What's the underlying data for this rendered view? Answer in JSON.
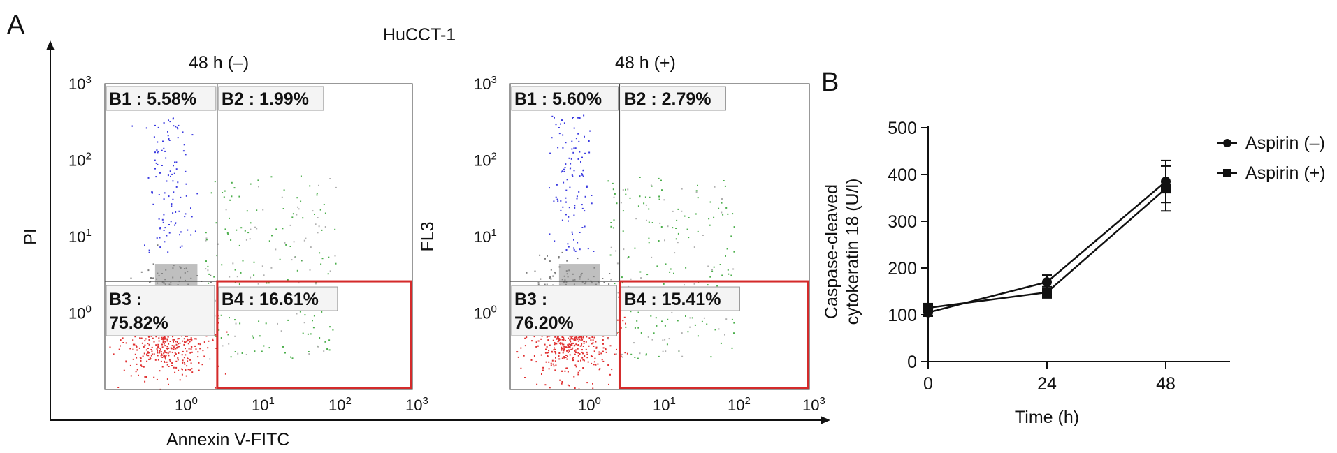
{
  "figure": {
    "panel_a_letter": "A",
    "panel_b_letter": "B",
    "cell_line": "HuCCT-1",
    "x_axis_label": "Annexin V-FITC"
  },
  "flow_plots": [
    {
      "title": "48 h (–)",
      "y_axis_label": "PI",
      "gates": {
        "B1": "B1 : 5.58%",
        "B2": "B2 : 1.99%",
        "B3_name": "B3 :",
        "B3_value": "75.82%",
        "B4": "B4 : 16.61%"
      }
    },
    {
      "title": "48 h (+)",
      "y_axis_label": "FL3",
      "gates": {
        "B1": "B1 : 5.60%",
        "B2": "B2 : 2.79%",
        "B3_name": "B3 :",
        "B3_value": "76.20%",
        "B4": "B4 : 15.41%"
      }
    }
  ],
  "chart_data": [
    {
      "type": "scatter",
      "panel": "A-left",
      "title": "48 h (–)",
      "xlabel": "Annexin V-FITC",
      "ylabel": "PI",
      "x_scale": "log",
      "y_scale": "log",
      "xlim": [
        0.1,
        1000
      ],
      "ylim": [
        0.1,
        1000
      ],
      "x_ticks": [
        "10^0",
        "10^1",
        "10^2",
        "10^3"
      ],
      "y_ticks": [
        "10^0",
        "10^1",
        "10^2",
        "10^3"
      ],
      "quadrant_percent": {
        "B1": 5.58,
        "B2": 1.99,
        "B3": 75.82,
        "B4": 16.61
      }
    },
    {
      "type": "scatter",
      "panel": "A-right",
      "title": "48 h (+)",
      "xlabel": "Annexin V-FITC",
      "ylabel": "FL3",
      "x_scale": "log",
      "y_scale": "log",
      "xlim": [
        0.1,
        1000
      ],
      "ylim": [
        0.1,
        1000
      ],
      "x_ticks": [
        "10^0",
        "10^1",
        "10^2",
        "10^3"
      ],
      "y_ticks": [
        "10^0",
        "10^1",
        "10^2",
        "10^3"
      ],
      "quadrant_percent": {
        "B1": 5.6,
        "B2": 2.79,
        "B3": 76.2,
        "B4": 15.41
      }
    },
    {
      "type": "line",
      "panel": "B",
      "xlabel": "Time (h)",
      "ylabel": "Caspase-cleaved cytokeratin 18 (U/l)",
      "ylabel_lines": [
        "Caspase-cleaved",
        "cytokeratin 18 (U/l)"
      ],
      "x": [
        0,
        24,
        48
      ],
      "xlim": [
        0,
        48
      ],
      "ylim": [
        0,
        500
      ],
      "y_ticks": [
        0,
        100,
        200,
        300,
        400,
        500
      ],
      "legend_position": "top-right",
      "series": [
        {
          "name": "Aspirin (–)",
          "marker": "circle",
          "values": [
            105,
            170,
            385
          ],
          "errors": [
            8,
            15,
            45
          ]
        },
        {
          "name": "Aspirin (+)",
          "marker": "square",
          "values": [
            115,
            148,
            370
          ],
          "errors": [
            8,
            12,
            48
          ]
        }
      ]
    }
  ]
}
